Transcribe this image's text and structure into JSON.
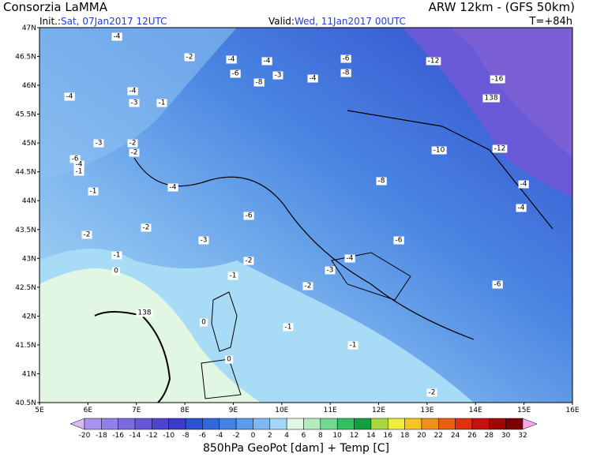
{
  "header": {
    "left": "Consorzia LaMMA",
    "right": "ARW 12km - (GFS 50km)",
    "init_label": "Init.:",
    "init": "Sat, 07Jan2017 12UTC",
    "valid_label": "Valid:",
    "valid": "Wed, 11Jan2017 00UTC",
    "lead": "T=+84h"
  },
  "map": {
    "lat_labels": [
      "47N",
      "46.5N",
      "46N",
      "45.5N",
      "45N",
      "44.5N",
      "44N",
      "43.5N",
      "43N",
      "42.5N",
      "42N",
      "41.5N",
      "41N",
      "40.5N"
    ],
    "lon_labels": [
      "5E",
      "6E",
      "7E",
      "8E",
      "9E",
      "10E",
      "11E",
      "12E",
      "13E",
      "14E",
      "15E",
      "16E"
    ],
    "contour_labels": [
      "-4",
      "-2",
      "-4",
      "-4",
      "-6",
      "-12",
      "-6",
      "-3",
      "-8",
      "-4",
      "-8",
      "-16",
      "-4",
      "-4",
      "-3",
      "-1",
      "138",
      "-3",
      "-2",
      "-10",
      "-12",
      "-2",
      "-6",
      "-4",
      "-1",
      "-4",
      "-8",
      "-1",
      "-4",
      "-6",
      "-4",
      "-2",
      "-2",
      "-3",
      "-6",
      "-1",
      "-2",
      "-4",
      "-3",
      "-1",
      "-2",
      "-6",
      "0",
      "138",
      "0",
      "-1",
      "-1",
      "0",
      "-2"
    ]
  },
  "colorbar": {
    "labels": [
      "-20",
      "-18",
      "-16",
      "-14",
      "-12",
      "-10",
      "-8",
      "-6",
      "-4",
      "-2",
      "0",
      "2",
      "4",
      "6",
      "8",
      "10",
      "12",
      "14",
      "16",
      "18",
      "20",
      "22",
      "24",
      "26",
      "28",
      "30",
      "32"
    ],
    "colors": [
      "#d8b8f8",
      "#a894f0",
      "#9080e8",
      "#7a6ce0",
      "#6458d8",
      "#4e44d0",
      "#3c3cc8",
      "#2c52d4",
      "#2e68dc",
      "#4282e4",
      "#5c9cec",
      "#7cb8f2",
      "#a4d6f6",
      "#e2f6e6",
      "#b0ecc0",
      "#70d890",
      "#30c060",
      "#10a040",
      "#a8d840",
      "#f0ec40",
      "#f8c428",
      "#f09018",
      "#e86010",
      "#e03010",
      "#c81010",
      "#a00808",
      "#7c0000",
      "#f8a8e8"
    ],
    "title": "850hPa GeoPot [dam] + Temp [C]"
  }
}
